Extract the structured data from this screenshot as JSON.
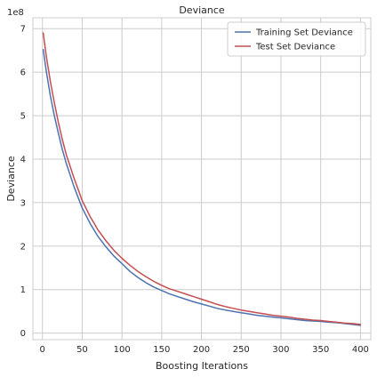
{
  "chart_data": {
    "type": "line",
    "title": "Deviance",
    "xlabel": "Boosting Iterations",
    "ylabel": "Deviance",
    "y_scale_label": "1e8",
    "xlim": [
      -12,
      413
    ],
    "ylim": [
      -0.15,
      7.25
    ],
    "x_ticks": [
      0,
      50,
      100,
      150,
      200,
      250,
      300,
      350,
      400
    ],
    "y_ticks": [
      0,
      1,
      2,
      3,
      4,
      5,
      6,
      7
    ],
    "grid": true,
    "legend_position": "top-right",
    "colors": {
      "train": "#4c72b0",
      "test": "#c44e52",
      "grid": "#cccccc",
      "spine": "#cccccc"
    },
    "series": [
      {
        "name": "Training Set Deviance",
        "key": "train",
        "x": [
          1,
          5,
          10,
          15,
          20,
          25,
          30,
          40,
          50,
          60,
          70,
          80,
          90,
          100,
          110,
          120,
          130,
          140,
          150,
          160,
          170,
          180,
          190,
          200,
          210,
          220,
          230,
          240,
          250,
          260,
          270,
          280,
          290,
          300,
          310,
          320,
          330,
          340,
          350,
          360,
          370,
          380,
          390,
          400
        ],
        "values": [
          6.52,
          6.0,
          5.45,
          5.0,
          4.6,
          4.22,
          3.9,
          3.35,
          2.88,
          2.52,
          2.22,
          1.98,
          1.77,
          1.6,
          1.42,
          1.28,
          1.16,
          1.06,
          0.98,
          0.9,
          0.84,
          0.78,
          0.72,
          0.67,
          0.62,
          0.57,
          0.53,
          0.5,
          0.47,
          0.44,
          0.41,
          0.39,
          0.37,
          0.35,
          0.33,
          0.31,
          0.29,
          0.28,
          0.27,
          0.25,
          0.24,
          0.22,
          0.2,
          0.18
        ]
      },
      {
        "name": "Test Set Deviance",
        "key": "test",
        "x": [
          1,
          5,
          10,
          15,
          20,
          25,
          30,
          40,
          50,
          60,
          70,
          80,
          90,
          100,
          110,
          120,
          130,
          140,
          150,
          160,
          170,
          180,
          190,
          200,
          210,
          220,
          230,
          240,
          250,
          260,
          270,
          280,
          290,
          300,
          310,
          320,
          330,
          340,
          350,
          360,
          370,
          380,
          390,
          400
        ],
        "values": [
          6.9,
          6.35,
          5.78,
          5.3,
          4.85,
          4.45,
          4.1,
          3.55,
          3.05,
          2.68,
          2.37,
          2.12,
          1.9,
          1.72,
          1.56,
          1.42,
          1.3,
          1.19,
          1.1,
          1.02,
          0.96,
          0.9,
          0.84,
          0.78,
          0.72,
          0.66,
          0.61,
          0.57,
          0.53,
          0.5,
          0.47,
          0.44,
          0.41,
          0.39,
          0.37,
          0.34,
          0.32,
          0.3,
          0.29,
          0.27,
          0.25,
          0.23,
          0.22,
          0.2
        ]
      }
    ]
  }
}
